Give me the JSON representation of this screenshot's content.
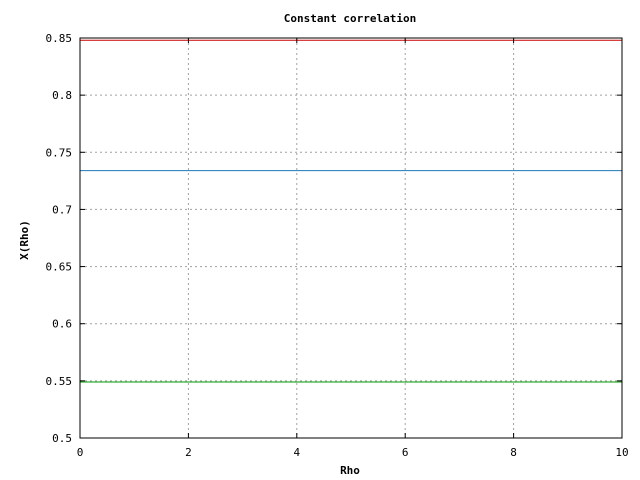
{
  "chart_data": {
    "type": "line",
    "title": "Constant correlation",
    "xlabel": "Rho",
    "ylabel": "X(Rho)",
    "xlim": [
      0,
      10
    ],
    "ylim": [
      0.5,
      0.85
    ],
    "x_ticks": [
      0,
      2,
      4,
      6,
      8,
      10
    ],
    "x_tick_labels": [
      "0",
      "2",
      "4",
      "6",
      "8",
      "10"
    ],
    "y_ticks": [
      0.5,
      0.55,
      0.6,
      0.65,
      0.7,
      0.75,
      0.8,
      0.85
    ],
    "y_tick_labels": [
      "0.5",
      "0.55",
      "0.6",
      "0.65",
      "0.7",
      "0.75",
      "0.8",
      "0.85"
    ],
    "grid": true,
    "x": [
      0,
      10
    ],
    "series": [
      {
        "values": [
          0.848,
          0.848
        ],
        "color": "#cc0000"
      },
      {
        "values": [
          0.734,
          0.734
        ],
        "color": "#1f77b4"
      },
      {
        "values": [
          0.549,
          0.549
        ],
        "color": "#009900"
      }
    ]
  }
}
